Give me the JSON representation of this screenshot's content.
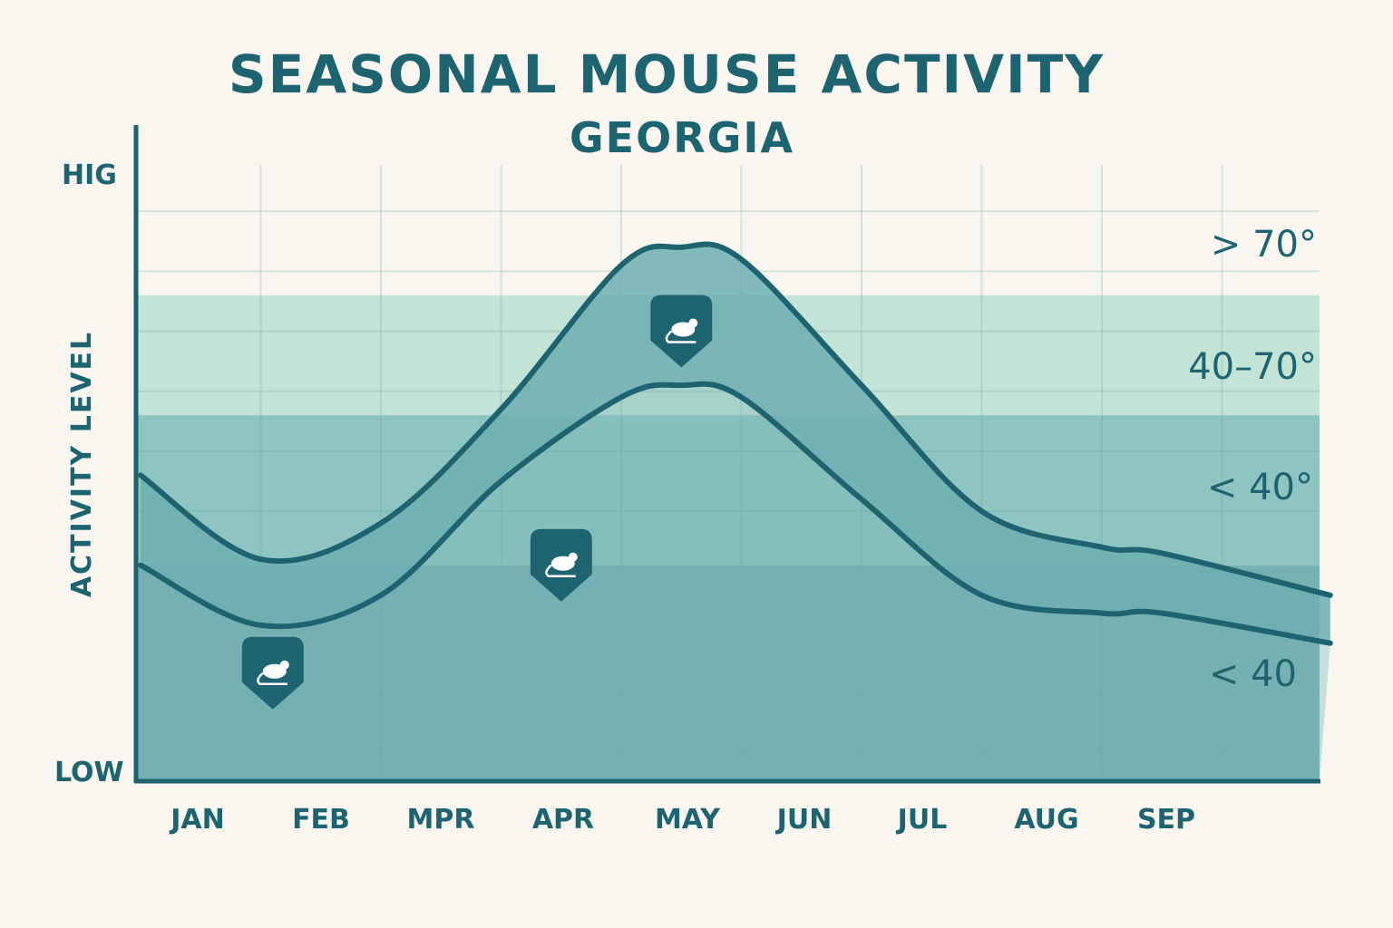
{
  "chart_data": {
    "type": "area",
    "title": "SEASONAL MOUSE ACTIVITY",
    "subtitle": "GEORGIA",
    "ylabel": "ACTIVITY LEVEL",
    "xlabel": "",
    "y_high_label": "HIG",
    "y_low_label": "LOW",
    "ylim": [
      0,
      100
    ],
    "categories": [
      "JAN",
      "FEB",
      "MPR",
      "APR",
      "MAY",
      "JUN",
      "JUL",
      "AUG",
      "SEP"
    ],
    "grid": true,
    "legend": "none",
    "series": [
      {
        "x": [
          0,
          1,
          2,
          3,
          4,
          4.5,
          5,
          6,
          7,
          8,
          8.5,
          9.9
        ],
        "values": [
          51,
          37,
          43,
          62,
          86,
          89,
          87,
          66,
          45,
          39,
          38,
          31
        ]
      },
      {
        "x": [
          0,
          1,
          2,
          3,
          4,
          4.5,
          5,
          6,
          7,
          8,
          8.5,
          9.9
        ],
        "values": [
          36,
          26,
          31,
          50,
          64,
          66,
          64,
          47,
          31,
          28,
          28,
          23
        ]
      }
    ],
    "bands": [
      {
        "label": "> 70°",
        "from": 0,
        "to": 0
      },
      {
        "label": "40–70°",
        "from": 61,
        "to": 81
      },
      {
        "label": "< 40°",
        "from": 36,
        "to": 61
      },
      {
        "label": "< 40",
        "from": 0,
        "to": 36
      }
    ],
    "markers": [
      {
        "x": 1.1,
        "y": 18,
        "icon": "mouse-icon"
      },
      {
        "x": 3.5,
        "y": 36,
        "icon": "mouse-icon"
      },
      {
        "x": 4.5,
        "y": 75,
        "icon": "mouse-icon"
      }
    ],
    "colors": {
      "primary": "#1e6470",
      "band_upper": "#c3e3d6",
      "band_mid": "#8fc5c1",
      "band_lower": "#76b1b3",
      "ribbon": "#6eaeb0"
    }
  }
}
